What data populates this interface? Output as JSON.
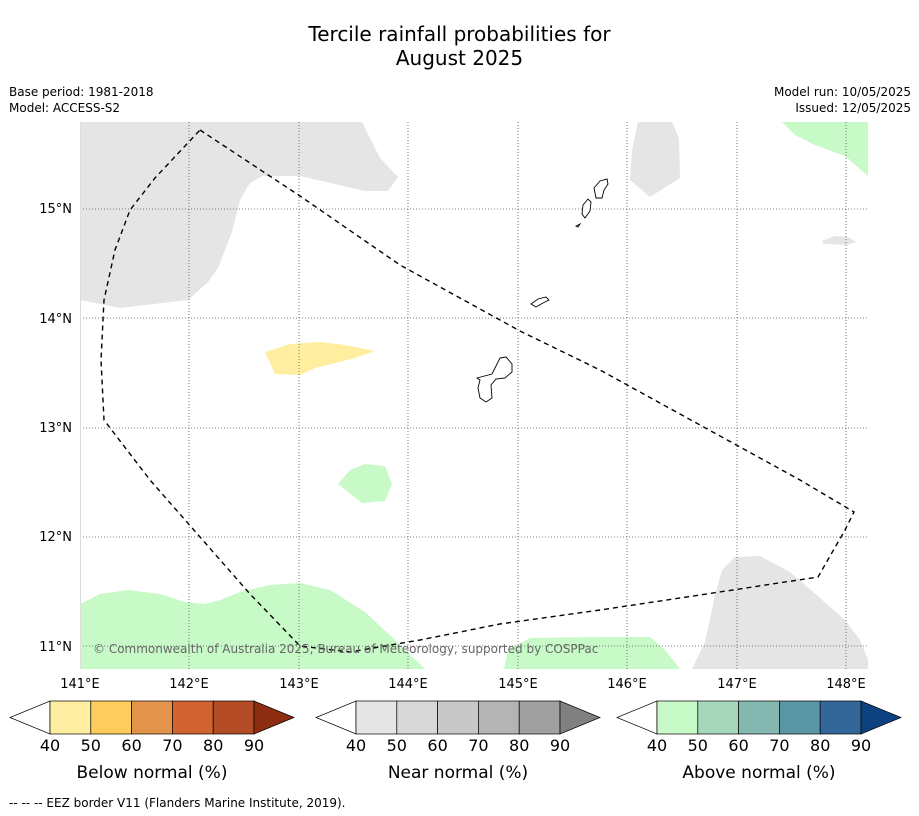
{
  "title": {
    "line1": "Tercile rainfall probabilities for",
    "line2": "August 2025"
  },
  "meta_left": {
    "base_period": "Base period: 1981-2018",
    "model": "Model: ACCESS-S2"
  },
  "meta_right": {
    "model_run": "Model run: 10/05/2025",
    "issued": "Issued: 12/05/2025"
  },
  "map": {
    "lon_ticks": [
      "141°E",
      "142°E",
      "143°E",
      "144°E",
      "145°E",
      "146°E",
      "147°E",
      "148°E"
    ],
    "lat_ticks": [
      "15°N",
      "14°N",
      "13°N",
      "12°N",
      "11°N"
    ],
    "copyright": "© Commonwealth of Australia 2025, Bureau of Meteorology, supported by COSPPac",
    "colors": {
      "near_normal_region": "#e5e5e5",
      "above_normal_region": "#c8fac8",
      "below_normal_region": "#ffeda0",
      "coastline": "#000000",
      "eez_border": "#000000"
    }
  },
  "colorbars": [
    {
      "name": "below",
      "label": "Below normal (%)",
      "ticks": [
        "40",
        "50",
        "60",
        "70",
        "80",
        "90"
      ],
      "colors": [
        "#ffffff",
        "#ffeda0",
        "#fecc5c",
        "#e3944b",
        "#d0632f",
        "#b34b24",
        "#8c2d12"
      ]
    },
    {
      "name": "near",
      "label": "Near normal (%)",
      "ticks": [
        "40",
        "50",
        "60",
        "70",
        "80",
        "90"
      ],
      "colors": [
        "#ffffff",
        "#e5e5e5",
        "#d8d8d8",
        "#c8c8c8",
        "#b4b4b4",
        "#a0a0a0",
        "#808080"
      ]
    },
    {
      "name": "above",
      "label": "Above normal (%)",
      "ticks": [
        "40",
        "50",
        "60",
        "70",
        "80",
        "90"
      ],
      "colors": [
        "#ffffff",
        "#c8fac8",
        "#a8d8bc",
        "#84b8b0",
        "#5a96a4",
        "#346799",
        "#0d4280"
      ]
    }
  ],
  "footnote": "--  --  -- EEZ border V11 (Flanders Marine Institute, 2019)."
}
